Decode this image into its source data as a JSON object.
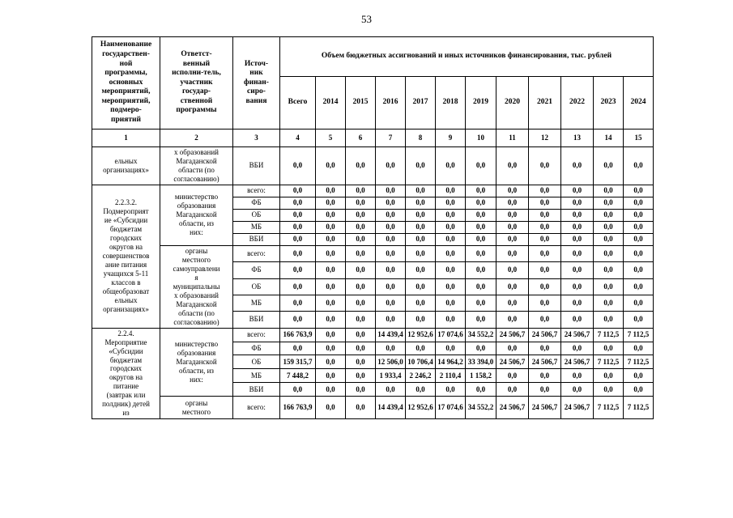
{
  "page_number": "53",
  "table": {
    "header": {
      "program": "Наименование\nгосударствен-\nной\nпрограммы,\nосновных\nмероприятий,\nмероприятий,\nподмеро-\nприятий",
      "executor": "Ответст-\nвенный\nисполни-тель,\nучастник\nгосудар-\nственной\nпрограммы",
      "source": "Источ-\nник\nфинан-\nсиро-\nвания",
      "group_title": "Объем бюджетных ассигнований и иных источников финансирования, тыс. рублей",
      "year_columns": [
        "Всего",
        "2014",
        "2015",
        "2016",
        "2017",
        "2018",
        "2019",
        "2020",
        "2021",
        "2022",
        "2023",
        "2024"
      ],
      "column_numbers": [
        "1",
        "2",
        "3",
        "4",
        "5",
        "6",
        "7",
        "8",
        "9",
        "10",
        "11",
        "12",
        "13",
        "14",
        "15"
      ]
    },
    "groups": [
      {
        "program": "ельных\nорганизациях»",
        "executors": [
          {
            "name": "х образований\nМагаданской\nобласти (по\nсогласованию)",
            "rows": [
              {
                "source": "ВБИ",
                "values": [
                  "0,0",
                  "0,0",
                  "0,0",
                  "0,0",
                  "0,0",
                  "0,0",
                  "0,0",
                  "0,0",
                  "0,0",
                  "0,0",
                  "0,0",
                  "0,0"
                ]
              }
            ]
          }
        ]
      },
      {
        "program": "2.2.3.2.\nПодмероприят\nие «Субсидии\nбюджетам\nгородских\nокругов на\nсовершенствов\nание питания\nучащихся 5-11\nклассов в\nобщеобразоват\nельных\nорганизациях»",
        "executors": [
          {
            "name": "министерство\nобразования\nМагаданской\nобласти, из\nних:",
            "rows": [
              {
                "source": "всего:",
                "values": [
                  "0,0",
                  "0,0",
                  "0,0",
                  "0,0",
                  "0,0",
                  "0,0",
                  "0,0",
                  "0,0",
                  "0,0",
                  "0,0",
                  "0,0",
                  "0,0"
                ]
              },
              {
                "source": "ФБ",
                "values": [
                  "0,0",
                  "0,0",
                  "0,0",
                  "0,0",
                  "0,0",
                  "0,0",
                  "0,0",
                  "0,0",
                  "0,0",
                  "0,0",
                  "0,0",
                  "0,0"
                ]
              },
              {
                "source": "ОБ",
                "values": [
                  "0,0",
                  "0,0",
                  "0,0",
                  "0,0",
                  "0,0",
                  "0,0",
                  "0,0",
                  "0,0",
                  "0,0",
                  "0,0",
                  "0,0",
                  "0,0"
                ]
              },
              {
                "source": "МБ",
                "values": [
                  "0,0",
                  "0,0",
                  "0,0",
                  "0,0",
                  "0,0",
                  "0,0",
                  "0,0",
                  "0,0",
                  "0,0",
                  "0,0",
                  "0,0",
                  "0,0"
                ]
              },
              {
                "source": "ВБИ",
                "values": [
                  "0,0",
                  "0,0",
                  "0,0",
                  "0,0",
                  "0,0",
                  "0,0",
                  "0,0",
                  "0,0",
                  "0,0",
                  "0,0",
                  "0,0",
                  "0,0"
                ]
              }
            ]
          },
          {
            "name": "органы\nместного\nсамоуправлени\nя\nмуниципальны\nх образований\nМагаданской\nобласти (по\nсогласованию)",
            "rows": [
              {
                "source": "всего:",
                "values": [
                  "0,0",
                  "0,0",
                  "0,0",
                  "0,0",
                  "0,0",
                  "0,0",
                  "0,0",
                  "0,0",
                  "0,0",
                  "0,0",
                  "0,0",
                  "0,0"
                ]
              },
              {
                "source": "ФБ",
                "values": [
                  "0,0",
                  "0,0",
                  "0,0",
                  "0,0",
                  "0,0",
                  "0,0",
                  "0,0",
                  "0,0",
                  "0,0",
                  "0,0",
                  "0,0",
                  "0,0"
                ]
              },
              {
                "source": "ОБ",
                "values": [
                  "0,0",
                  "0,0",
                  "0,0",
                  "0,0",
                  "0,0",
                  "0,0",
                  "0,0",
                  "0,0",
                  "0,0",
                  "0,0",
                  "0,0",
                  "0,0"
                ]
              },
              {
                "source": "МБ",
                "values": [
                  "0,0",
                  "0,0",
                  "0,0",
                  "0,0",
                  "0,0",
                  "0,0",
                  "0,0",
                  "0,0",
                  "0,0",
                  "0,0",
                  "0,0",
                  "0,0"
                ]
              },
              {
                "source": "ВБИ",
                "values": [
                  "0,0",
                  "0,0",
                  "0,0",
                  "0,0",
                  "0,0",
                  "0,0",
                  "0,0",
                  "0,0",
                  "0,0",
                  "0,0",
                  "0,0",
                  "0,0"
                ]
              }
            ]
          }
        ]
      },
      {
        "program": "2.2.4.\nМероприятие\n«Субсидии\nбюджетам\nгородских\nокругов на\nпитание\n(завтрак или\nполдник) детей\nиз",
        "executors": [
          {
            "name": "министерство\nобразования\nМагаданской\nобласти, из\nних:",
            "rows": [
              {
                "source": "всего:",
                "values": [
                  "166 763,9",
                  "0,0",
                  "0,0",
                  "14 439,4",
                  "12 952,6",
                  "17 074,6",
                  "34 552,2",
                  "24 506,7",
                  "24 506,7",
                  "24 506,7",
                  "7 112,5",
                  "7 112,5"
                ]
              },
              {
                "source": "ФБ",
                "values": [
                  "0,0",
                  "0,0",
                  "0,0",
                  "0,0",
                  "0,0",
                  "0,0",
                  "0,0",
                  "0,0",
                  "0,0",
                  "0,0",
                  "0,0",
                  "0,0"
                ]
              },
              {
                "source": "ОБ",
                "values": [
                  "159 315,7",
                  "0,0",
                  "0,0",
                  "12 506,0",
                  "10 706,4",
                  "14 964,2",
                  "33 394,0",
                  "24 506,7",
                  "24 506,7",
                  "24 506,7",
                  "7 112,5",
                  "7 112,5"
                ]
              },
              {
                "source": "МБ",
                "values": [
                  "7 448,2",
                  "0,0",
                  "0,0",
                  "1 933,4",
                  "2 246,2",
                  "2 110,4",
                  "1 158,2",
                  "0,0",
                  "0,0",
                  "0,0",
                  "0,0",
                  "0,0"
                ]
              },
              {
                "source": "ВБИ",
                "values": [
                  "0,0",
                  "0,0",
                  "0,0",
                  "0,0",
                  "0,0",
                  "0,0",
                  "0,0",
                  "0,0",
                  "0,0",
                  "0,0",
                  "0,0",
                  "0,0"
                ]
              }
            ]
          },
          {
            "name": "органы\nместного",
            "rows": [
              {
                "source": "всего:",
                "values": [
                  "166 763,9",
                  "0,0",
                  "0,0",
                  "14 439,4",
                  "12 952,6",
                  "17 074,6",
                  "34 552,2",
                  "24 506,7",
                  "24 506,7",
                  "24 506,7",
                  "7 112,5",
                  "7 112,5"
                ]
              }
            ]
          }
        ]
      }
    ]
  }
}
